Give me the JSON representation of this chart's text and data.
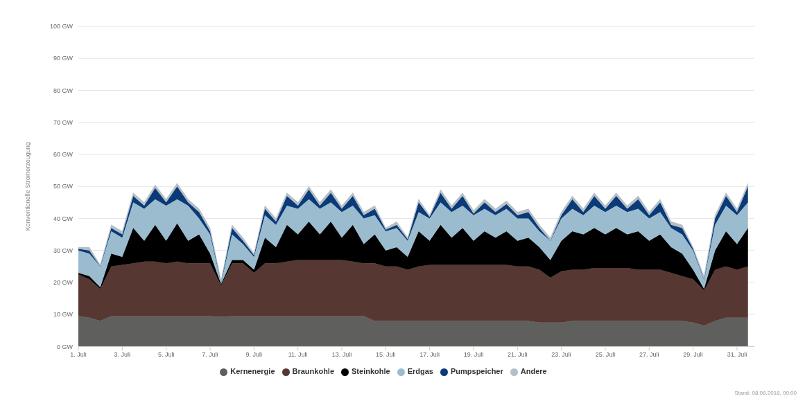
{
  "chart_data": {
    "type": "area",
    "stacked": true,
    "ylabel": "Konventionelle Stromerzeugung",
    "annotations": [
      "Stand: 08.08.2018, 00:00"
    ],
    "x": [
      "2018-07-01T00:00",
      "2018-07-01T12:00",
      "2018-07-02T00:00",
      "2018-07-02T12:00",
      "2018-07-03T00:00",
      "2018-07-03T12:00",
      "2018-07-04T00:00",
      "2018-07-04T12:00",
      "2018-07-05T00:00",
      "2018-07-05T12:00",
      "2018-07-06T00:00",
      "2018-07-06T12:00",
      "2018-07-07T00:00",
      "2018-07-07T12:00",
      "2018-07-08T00:00",
      "2018-07-08T12:00",
      "2018-07-09T00:00",
      "2018-07-09T12:00",
      "2018-07-10T00:00",
      "2018-07-10T12:00",
      "2018-07-11T00:00",
      "2018-07-11T12:00",
      "2018-07-12T00:00",
      "2018-07-12T12:00",
      "2018-07-13T00:00",
      "2018-07-13T12:00",
      "2018-07-14T00:00",
      "2018-07-14T12:00",
      "2018-07-15T00:00",
      "2018-07-15T12:00",
      "2018-07-16T00:00",
      "2018-07-16T12:00",
      "2018-07-17T00:00",
      "2018-07-17T12:00",
      "2018-07-18T00:00",
      "2018-07-18T12:00",
      "2018-07-19T00:00",
      "2018-07-19T12:00",
      "2018-07-20T00:00",
      "2018-07-20T12:00",
      "2018-07-21T00:00",
      "2018-07-21T12:00",
      "2018-07-22T00:00",
      "2018-07-22T12:00",
      "2018-07-23T00:00",
      "2018-07-23T12:00",
      "2018-07-24T00:00",
      "2018-07-24T12:00",
      "2018-07-25T00:00",
      "2018-07-25T12:00",
      "2018-07-26T00:00",
      "2018-07-26T12:00",
      "2018-07-27T00:00",
      "2018-07-27T12:00",
      "2018-07-28T00:00",
      "2018-07-28T12:00",
      "2018-07-29T00:00",
      "2018-07-29T12:00",
      "2018-07-30T00:00",
      "2018-07-30T12:00",
      "2018-07-31T00:00",
      "2018-07-31T12:00"
    ],
    "xlim": [
      "2018-07-01T00:00",
      "2018-07-31T19:00"
    ],
    "xticks": [
      {
        "value": "2018-07-01",
        "label": "1. Juli"
      },
      {
        "value": "2018-07-03",
        "label": "3. Juli"
      },
      {
        "value": "2018-07-05",
        "label": "5. Juli"
      },
      {
        "value": "2018-07-07",
        "label": "7. Juli"
      },
      {
        "value": "2018-07-09",
        "label": "9. Juli"
      },
      {
        "value": "2018-07-11",
        "label": "11. Juli"
      },
      {
        "value": "2018-07-13",
        "label": "13. Juli"
      },
      {
        "value": "2018-07-15",
        "label": "15. Juli"
      },
      {
        "value": "2018-07-17",
        "label": "17. Juli"
      },
      {
        "value": "2018-07-19",
        "label": "19. Juli"
      },
      {
        "value": "2018-07-21",
        "label": "21. Juli"
      },
      {
        "value": "2018-07-23",
        "label": "23. Juli"
      },
      {
        "value": "2018-07-25",
        "label": "25. Juli"
      },
      {
        "value": "2018-07-27",
        "label": "27. Juli"
      },
      {
        "value": "2018-07-29",
        "label": "29. Juli"
      },
      {
        "value": "2018-07-31",
        "label": "31. Juli"
      }
    ],
    "ylim": [
      0,
      100
    ],
    "yticks": [
      {
        "value": 0,
        "label": "0 GW"
      },
      {
        "value": 10,
        "label": "10 GW"
      },
      {
        "value": 20,
        "label": "20 GW"
      },
      {
        "value": 30,
        "label": "30 GW"
      },
      {
        "value": 40,
        "label": "40 GW"
      },
      {
        "value": 50,
        "label": "50 GW"
      },
      {
        "value": 60,
        "label": "60 GW"
      },
      {
        "value": 70,
        "label": "70 GW"
      },
      {
        "value": 80,
        "label": "80 GW"
      },
      {
        "value": 90,
        "label": "90 GW"
      },
      {
        "value": 100,
        "label": "100 GW"
      }
    ],
    "grid": "y",
    "legend": "bottom",
    "series": [
      {
        "name": "Kernenergie",
        "color": "#5f605d",
        "values": [
          9.5,
          9,
          8,
          9.5,
          9.5,
          9.5,
          9.5,
          9.5,
          9.5,
          9.5,
          9.5,
          9.5,
          9.5,
          9.3,
          9.5,
          9.5,
          9.5,
          9.5,
          9.5,
          9.5,
          9.5,
          9.5,
          9.5,
          9.5,
          9.5,
          9.5,
          9.5,
          8,
          8,
          8,
          8,
          8,
          8,
          8,
          8,
          8,
          8,
          8,
          8,
          8,
          8,
          8,
          7.5,
          7.5,
          7.5,
          8,
          8,
          8,
          8,
          8,
          8,
          8,
          8,
          8,
          8,
          8,
          7.5,
          6.5,
          8,
          9,
          9,
          9
        ]
      },
      {
        "name": "Braunkohle",
        "color": "#563732",
        "values": [
          13,
          12,
          10,
          15.5,
          16,
          16.5,
          17,
          17,
          16.5,
          17,
          16.5,
          16.5,
          16.5,
          9.7,
          16.5,
          16.5,
          13.5,
          16.5,
          16.5,
          17,
          17.5,
          17.5,
          17.5,
          17.5,
          17.5,
          17,
          16.5,
          18,
          17,
          17,
          16,
          17,
          17.5,
          17.5,
          17.5,
          17.5,
          17.5,
          17.5,
          17.5,
          17.5,
          17,
          17,
          16.5,
          14,
          16,
          16,
          16,
          16.5,
          16.5,
          16.5,
          16.5,
          16,
          16,
          16,
          15,
          14,
          13.5,
          11,
          16,
          16,
          15,
          16
        ]
      },
      {
        "name": "Steinkohle",
        "color": "#000000",
        "values": [
          0.5,
          1,
          0.5,
          4,
          2.5,
          11,
          6.5,
          11.5,
          7,
          12,
          7,
          9,
          3,
          0.5,
          1,
          1,
          1,
          8,
          5,
          11.5,
          8,
          12,
          8,
          12,
          7,
          11.5,
          6,
          9,
          5,
          6,
          4,
          11,
          7.5,
          12.5,
          8.5,
          11.5,
          7.5,
          10.5,
          8.5,
          10.5,
          8,
          9,
          7,
          5.5,
          9.5,
          12,
          11,
          12.5,
          10.5,
          12.5,
          10.5,
          12,
          9,
          11,
          8,
          7,
          3,
          0.5,
          6,
          11,
          8,
          12
        ]
      },
      {
        "name": "Erdgas",
        "color": "#9bbccf",
        "values": [
          7,
          7,
          6.5,
          7,
          6,
          8,
          10,
          8,
          11,
          7.5,
          11,
          5,
          6,
          0.5,
          8,
          5,
          4,
          7,
          7,
          6,
          8,
          7,
          8,
          6,
          8,
          6,
          8,
          6,
          6,
          6,
          5,
          6,
          7,
          7,
          8,
          7,
          8,
          7,
          7,
          7,
          7,
          6,
          5,
          6,
          7,
          7,
          6,
          7,
          7,
          7,
          7,
          7,
          7,
          7,
          6,
          6,
          6,
          3,
          8,
          8,
          9,
          8
        ]
      },
      {
        "name": "Pumpspeicher",
        "color": "#0b3a78",
        "values": [
          0.5,
          1,
          0,
          1,
          1,
          2,
          1,
          3.5,
          1,
          4,
          1,
          2,
          1,
          0,
          2,
          1,
          0.5,
          2,
          1,
          3,
          1,
          3,
          1,
          3,
          1,
          3,
          1,
          2,
          0.5,
          1,
          0.5,
          3,
          0.5,
          3,
          1,
          3,
          0.5,
          2,
          1,
          1.5,
          1,
          2,
          1,
          0,
          1,
          3,
          1,
          3,
          1,
          3,
          1,
          3,
          1,
          3,
          1,
          2,
          0.5,
          0,
          2,
          3,
          1,
          5
        ]
      },
      {
        "name": "Andere",
        "color": "#b4bfc5",
        "values": [
          0.5,
          1,
          0.5,
          1,
          1,
          1,
          1,
          1,
          1,
          1,
          1,
          1,
          1,
          0.5,
          1,
          1,
          0.5,
          1,
          1,
          1,
          1,
          1,
          1,
          1,
          1,
          1,
          1,
          1,
          0.5,
          1,
          0.5,
          1,
          0.5,
          1,
          1,
          1,
          1,
          1,
          1,
          1,
          1,
          1,
          1,
          1,
          1,
          1,
          1,
          1,
          1,
          1,
          1,
          1,
          1,
          1,
          1,
          1,
          0.5,
          1,
          1,
          1,
          1,
          1
        ]
      }
    ]
  }
}
